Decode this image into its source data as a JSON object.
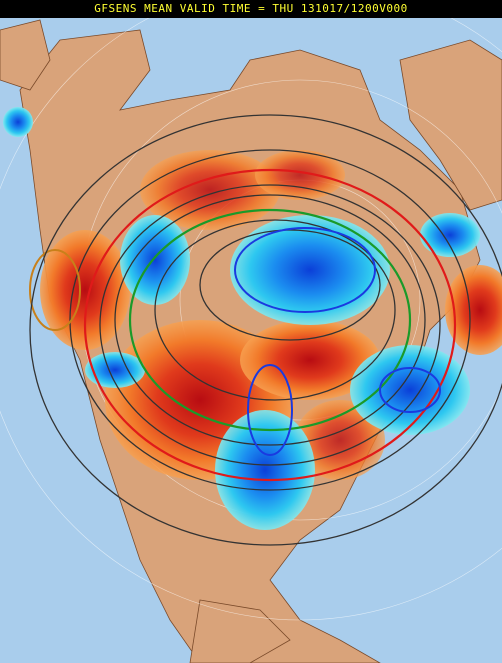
{
  "header": {
    "title": "GFSENS MEAN VALID TIME = THU 131017/1200V000"
  }
}
